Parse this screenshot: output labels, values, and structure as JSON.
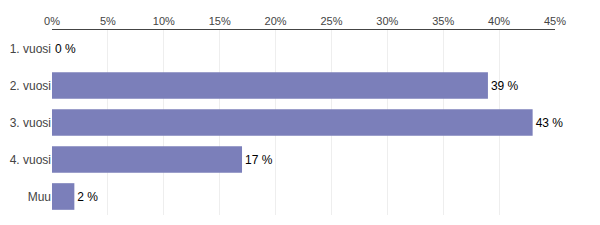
{
  "chart_data": {
    "type": "bar",
    "orientation": "horizontal",
    "categories": [
      "1. vuosi",
      "2. vuosi",
      "3. vuosi",
      "4. vuosi",
      "Muu"
    ],
    "values": [
      0,
      39,
      43,
      17,
      2
    ],
    "value_labels": [
      "0 %",
      "39 %",
      "43 %",
      "17 %",
      "2 %"
    ],
    "data_labels": true,
    "color": "#7b7fba",
    "xlim": [
      0,
      45
    ],
    "xticks": [
      {
        "value": 0,
        "label": "0%"
      },
      {
        "value": 5,
        "label": "5%"
      },
      {
        "value": 10,
        "label": "10%"
      },
      {
        "value": 15,
        "label": "15%"
      },
      {
        "value": 20,
        "label": "20%"
      },
      {
        "value": 25,
        "label": "25%"
      },
      {
        "value": 30,
        "label": "30%"
      },
      {
        "value": 35,
        "label": "35%"
      },
      {
        "value": 40,
        "label": "40%"
      },
      {
        "value": 45,
        "label": "45%"
      }
    ],
    "grid": true
  }
}
